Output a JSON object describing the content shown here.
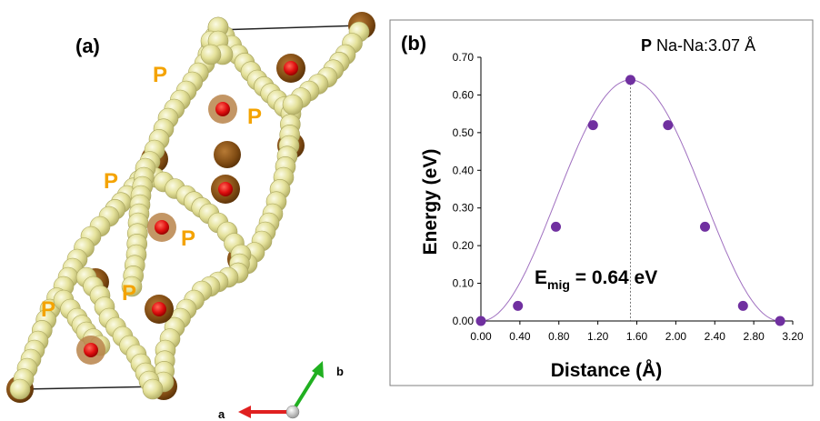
{
  "panel_a": {
    "label": "(a)",
    "site_label": "P",
    "axis_labels": {
      "a": "a",
      "b": "b"
    },
    "colors": {
      "chain_atom": "#e8e6a0",
      "chain_atom_edge": "#b5b26a",
      "na_outer": "#8a5416",
      "na_inner": "#e01010",
      "site_label": "#f4a300",
      "axis_a": "#e02020",
      "axis_b": "#20b020"
    }
  },
  "panel_b": {
    "label": "(b)",
    "annotation_bold": "P",
    "annotation_rest": " Na-Na:3.07 Å",
    "emig_main": "E",
    "emig_sub": "mig",
    "emig_value": " = 0.64 eV",
    "colors": {
      "marker": "#7030a0",
      "curve": "#a070c0",
      "frame": "#7f7f7f"
    }
  },
  "chart_data": {
    "type": "scatter",
    "xlabel": "Distance (Å)",
    "ylabel": "Energy (eV)",
    "xlim": [
      0.0,
      3.2
    ],
    "ylim": [
      0.0,
      0.7
    ],
    "xticks": [
      "0.00",
      "0.40",
      "0.80",
      "1.20",
      "1.60",
      "2.00",
      "2.40",
      "2.80",
      "3.20"
    ],
    "yticks": [
      "0.00",
      "0.10",
      "0.20",
      "0.30",
      "0.40",
      "0.50",
      "0.60",
      "0.70"
    ],
    "grid": false,
    "series": [
      {
        "x": [
          0.0,
          0.38,
          0.77,
          1.15,
          1.535,
          1.92,
          2.3,
          2.69,
          3.07
        ],
        "y": [
          0.0,
          0.04,
          0.25,
          0.52,
          0.64,
          0.52,
          0.25,
          0.04,
          0.0
        ]
      }
    ],
    "peak_marker_x": 1.535
  }
}
